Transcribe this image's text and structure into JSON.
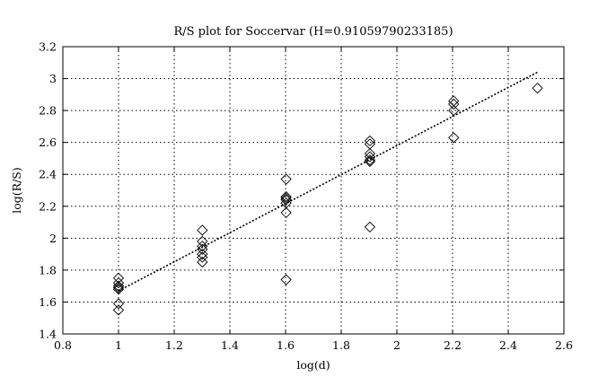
{
  "chart_data": {
    "type": "scatter",
    "title": "R/S plot for Soccervar (H=0.91059790233185)",
    "xlabel": "log(d)",
    "ylabel": "log(R/S)",
    "xlim": [
      0.8,
      2.6
    ],
    "ylim": [
      1.4,
      3.2
    ],
    "xticks": [
      0.8,
      1,
      1.2,
      1.4,
      1.6,
      1.8,
      2,
      2.2,
      2.4,
      2.6
    ],
    "yticks": [
      1.4,
      1.6,
      1.8,
      2,
      2.2,
      2.4,
      2.6,
      2.8,
      3,
      3.2
    ],
    "xtick_labels": [
      "0.8",
      "1",
      "1.2",
      "1.4",
      "1.6",
      "1.8",
      "2",
      "2.2",
      "2.4",
      "2.6"
    ],
    "ytick_labels": [
      "1.4",
      "1.6",
      "1.8",
      "2",
      "2.2",
      "2.4",
      "2.6",
      "2.8",
      "3",
      "3.2"
    ],
    "grid": true,
    "marker": "diamond-open",
    "points": [
      {
        "x": 1.0,
        "y": 1.75
      },
      {
        "x": 1.0,
        "y": 1.72
      },
      {
        "x": 1.0,
        "y": 1.7
      },
      {
        "x": 1.0,
        "y": 1.69
      },
      {
        "x": 1.0,
        "y": 1.68
      },
      {
        "x": 1.0,
        "y": 1.59
      },
      {
        "x": 1.0,
        "y": 1.55
      },
      {
        "x": 1.301,
        "y": 2.05
      },
      {
        "x": 1.301,
        "y": 1.98
      },
      {
        "x": 1.301,
        "y": 1.95
      },
      {
        "x": 1.301,
        "y": 1.93
      },
      {
        "x": 1.301,
        "y": 1.9
      },
      {
        "x": 1.301,
        "y": 1.88
      },
      {
        "x": 1.301,
        "y": 1.85
      },
      {
        "x": 1.602,
        "y": 2.37
      },
      {
        "x": 1.602,
        "y": 2.26
      },
      {
        "x": 1.602,
        "y": 2.25
      },
      {
        "x": 1.602,
        "y": 2.24
      },
      {
        "x": 1.602,
        "y": 2.22
      },
      {
        "x": 1.602,
        "y": 2.16
      },
      {
        "x": 1.602,
        "y": 1.74
      },
      {
        "x": 1.903,
        "y": 2.61
      },
      {
        "x": 1.903,
        "y": 2.59
      },
      {
        "x": 1.903,
        "y": 2.53
      },
      {
        "x": 1.903,
        "y": 2.51
      },
      {
        "x": 1.903,
        "y": 2.49
      },
      {
        "x": 1.903,
        "y": 2.48
      },
      {
        "x": 1.903,
        "y": 2.07
      },
      {
        "x": 2.204,
        "y": 2.86
      },
      {
        "x": 2.204,
        "y": 2.84
      },
      {
        "x": 2.204,
        "y": 2.8
      },
      {
        "x": 2.204,
        "y": 2.63
      },
      {
        "x": 2.505,
        "y": 2.94
      }
    ],
    "fit_line": {
      "x": [
        1.0,
        2.505
      ],
      "y": [
        1.67,
        3.04
      ],
      "style": "dotted"
    }
  }
}
